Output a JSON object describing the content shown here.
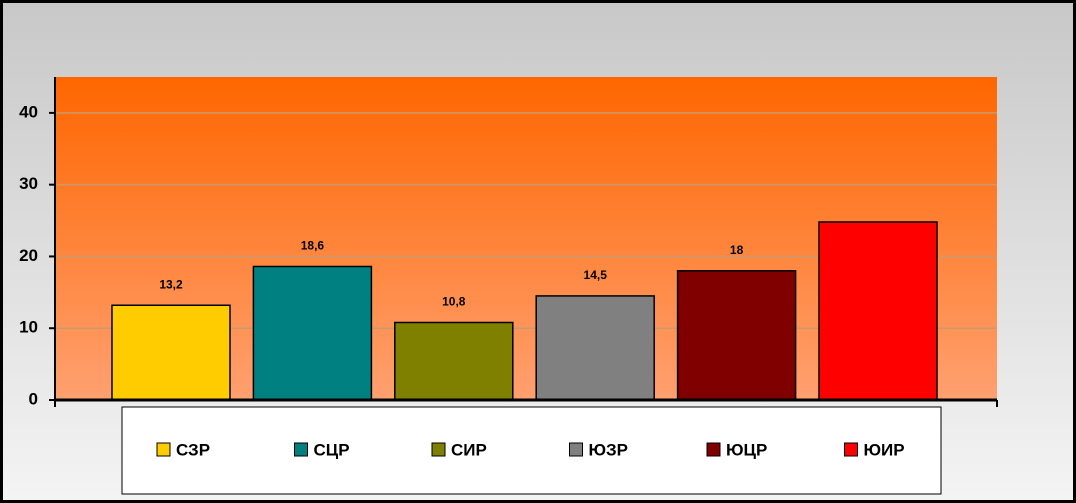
{
  "chart_data": {
    "type": "bar",
    "categories": [
      null
    ],
    "series": [
      {
        "name": "СЗР",
        "color": "#ffcc00",
        "values": [
          13.2
        ],
        "value_labels": [
          "13,2"
        ]
      },
      {
        "name": "СЦР",
        "color": "#008080",
        "values": [
          18.6
        ],
        "value_labels": [
          "18,6"
        ]
      },
      {
        "name": "СИР",
        "color": "#808000",
        "values": [
          10.8
        ],
        "value_labels": [
          "10,8"
        ]
      },
      {
        "name": "ЮЗР",
        "color": "#808080",
        "values": [
          14.5
        ],
        "value_labels": [
          "14,5"
        ]
      },
      {
        "name": "ЮЦР",
        "color": "#800000",
        "values": [
          18
        ],
        "value_labels": [
          "18"
        ]
      },
      {
        "name": "ЮИР",
        "color": "#ff0000",
        "values": [
          24.8
        ]
      }
    ],
    "ylim": [
      0,
      45
    ],
    "yticks": [
      0,
      10,
      20,
      30,
      40
    ],
    "grid": true,
    "legend": "bottom"
  }
}
